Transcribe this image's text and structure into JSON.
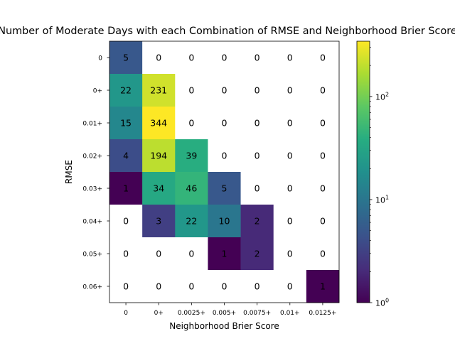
{
  "chart_data": {
    "type": "heatmap",
    "title": "Number of Moderate Days with each Combination of RMSE and Neighborhood Brier Score",
    "xlabel": "Neighborhood Brier Score",
    "ylabel": "RMSE",
    "x_categories": [
      "0",
      "0+",
      "0.0025+",
      "0.005+",
      "0.0075+",
      "0.01+",
      "0.0125+"
    ],
    "y_categories": [
      "0",
      "0+",
      "0.01+",
      "0.02+",
      "0.03+",
      "0.04+",
      "0.05+",
      "0.06+"
    ],
    "values": [
      [
        5,
        0,
        0,
        0,
        0,
        0,
        0
      ],
      [
        22,
        231,
        0,
        0,
        0,
        0,
        0
      ],
      [
        15,
        344,
        0,
        0,
        0,
        0,
        0
      ],
      [
        4,
        194,
        39,
        0,
        0,
        0,
        0
      ],
      [
        1,
        34,
        46,
        5,
        0,
        0,
        0
      ],
      [
        0,
        3,
        22,
        10,
        2,
        0,
        0
      ],
      [
        0,
        0,
        0,
        1,
        2,
        0,
        0
      ],
      [
        0,
        0,
        0,
        0,
        0,
        0,
        1
      ]
    ],
    "colorbar": {
      "scale": "log",
      "colormap": "viridis",
      "range": [
        1,
        344
      ],
      "tick_values": [
        1,
        10,
        100
      ],
      "tick_labels": [
        "10^0",
        "10^1",
        "10^2"
      ]
    },
    "zero_cell_color": "#ffffff"
  }
}
